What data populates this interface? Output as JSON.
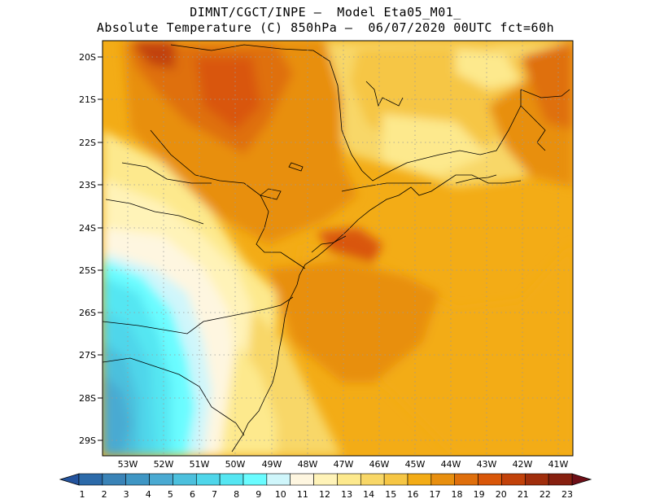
{
  "header": {
    "line1": "DIMNT/CGCT/INPE –  Model Eta05_M01_",
    "line2": "Absolute Temperature (C) 850hPa –  06/07/2020 00UTC fct=60h"
  },
  "map": {
    "lat_labels": [
      "20S",
      "21S",
      "22S",
      "23S",
      "24S",
      "25S",
      "26S",
      "27S",
      "28S",
      "29S"
    ],
    "lon_labels": [
      "53W",
      "52W",
      "51W",
      "50W",
      "49W",
      "48W",
      "47W",
      "46W",
      "45W",
      "44W",
      "43W",
      "42W",
      "41W"
    ],
    "lat_range": [
      -29.5,
      -19.8
    ],
    "lon_range": [
      -53.8,
      -40.7
    ],
    "variable": "Absolute Temperature (C) 850hPa",
    "fields": [
      {
        "level": 18,
        "desc": "warm core over interior Sao Paulo / north Parana and offshore patch near 24.5S 46.5W"
      },
      {
        "level": 16,
        "desc": "broad offshore plume from 24S to 29S"
      },
      {
        "level": 6,
        "desc": "cool air over west Santa Catarina / Rio Grande do Sul"
      }
    ]
  },
  "colorbar": {
    "labels": [
      "1",
      "2",
      "3",
      "4",
      "5",
      "6",
      "7",
      "8",
      "9",
      "10",
      "11",
      "12",
      "13",
      "14",
      "15",
      "16",
      "17",
      "18",
      "19",
      "20",
      "21",
      "22",
      "23"
    ],
    "colors": [
      "#23539d",
      "#2c6aa9",
      "#3a83b7",
      "#3f96c4",
      "#4aaad2",
      "#4cc0dd",
      "#4fd6ea",
      "#55e6f2",
      "#6afcff",
      "#cff6fb",
      "#fef6e0",
      "#fff3b8",
      "#fde98d",
      "#f8d767",
      "#f6c644",
      "#f3ac16",
      "#e88f0f",
      "#df6f0c",
      "#d95709",
      "#c2420a",
      "#a02e0c",
      "#872010",
      "#6e0f17"
    ]
  }
}
